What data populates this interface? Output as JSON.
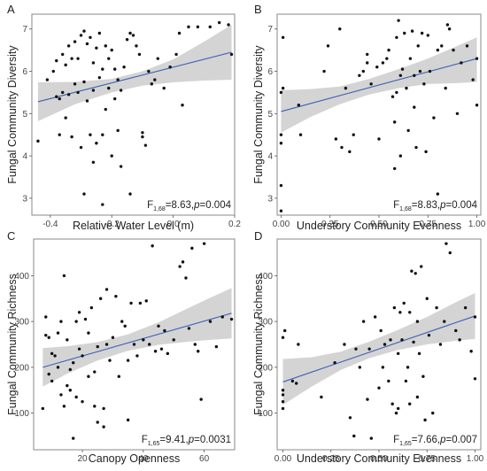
{
  "chart_data": [
    {
      "type": "scatter",
      "panel_label": "A",
      "xlabel": "Relative Water Level (m)",
      "ylabel": "Fungal Community Diversity",
      "xlim": [
        -0.46,
        0.2
      ],
      "ylim": [
        2.6,
        7.35
      ],
      "xticks": [
        -0.4,
        -0.2,
        0.0,
        0.2
      ],
      "xtick_labels": [
        "-0.4",
        "-0.2",
        "0.0",
        "0.2"
      ],
      "yticks": [
        3,
        4,
        5,
        6,
        7
      ],
      "ytick_labels": [
        "3",
        "4",
        "5",
        "6",
        "7"
      ],
      "stat": {
        "prefix": "F",
        "subscript": "1,68",
        "text": "=8.63,",
        "p_label": "p",
        "p_text": "=0.004"
      },
      "fit": {
        "x": [
          -0.44,
          0.19
        ],
        "y": [
          5.28,
          6.45
        ]
      },
      "ci": {
        "x": [
          -0.44,
          -0.32,
          -0.2,
          -0.1,
          0.0,
          0.1,
          0.19
        ],
        "lower": [
          4.82,
          5.22,
          5.5,
          5.66,
          5.74,
          5.78,
          5.8
        ],
        "upper": [
          5.74,
          5.75,
          5.82,
          6.0,
          6.28,
          6.7,
          7.1
        ]
      },
      "points": [
        [
          -0.44,
          4.35
        ],
        [
          -0.41,
          5.8
        ],
        [
          -0.39,
          6.0
        ],
        [
          -0.38,
          5.4
        ],
        [
          -0.38,
          6.25
        ],
        [
          -0.37,
          4.5
        ],
        [
          -0.37,
          5.35
        ],
        [
          -0.36,
          6.4
        ],
        [
          -0.36,
          5.5
        ],
        [
          -0.35,
          6.15
        ],
        [
          -0.35,
          4.9
        ],
        [
          -0.34,
          6.6
        ],
        [
          -0.34,
          5.45
        ],
        [
          -0.33,
          6.3
        ],
        [
          -0.33,
          4.45
        ],
        [
          -0.32,
          6.7
        ],
        [
          -0.32,
          5.7
        ],
        [
          -0.31,
          6.3
        ],
        [
          -0.31,
          5.5
        ],
        [
          -0.3,
          6.85
        ],
        [
          -0.3,
          4.2
        ],
        [
          -0.29,
          6.95
        ],
        [
          -0.29,
          5.75
        ],
        [
          -0.28,
          6.65
        ],
        [
          -0.28,
          5.3
        ],
        [
          -0.27,
          6.8
        ],
        [
          -0.27,
          4.5
        ],
        [
          -0.26,
          6.2
        ],
        [
          -0.26,
          5.55
        ],
        [
          -0.25,
          6.55
        ],
        [
          -0.25,
          4.3
        ],
        [
          -0.24,
          6.9
        ],
        [
          -0.24,
          5.85
        ],
        [
          -0.23,
          6.05
        ],
        [
          -0.23,
          4.5
        ],
        [
          -0.22,
          6.6
        ],
        [
          -0.22,
          5.1
        ],
        [
          -0.21,
          6.3
        ],
        [
          -0.21,
          5.6
        ],
        [
          -0.2,
          6.5
        ],
        [
          -0.2,
          4.0
        ],
        [
          -0.19,
          6.05
        ],
        [
          -0.19,
          5.35
        ],
        [
          -0.18,
          5.8
        ],
        [
          -0.18,
          4.6
        ],
        [
          -0.17,
          5.55
        ],
        [
          -0.16,
          6.1
        ],
        [
          -0.15,
          6.75
        ],
        [
          -0.14,
          6.9
        ],
        [
          -0.13,
          6.85
        ],
        [
          -0.12,
          6.6
        ],
        [
          -0.11,
          6.4
        ],
        [
          -0.1,
          4.55
        ],
        [
          -0.1,
          4.45
        ],
        [
          -0.09,
          4.25
        ],
        [
          -0.08,
          6.0
        ],
        [
          -0.07,
          5.7
        ],
        [
          -0.06,
          5.8
        ],
        [
          -0.05,
          6.3
        ],
        [
          -0.03,
          5.6
        ],
        [
          -0.01,
          6.1
        ],
        [
          0.01,
          6.4
        ],
        [
          0.02,
          6.9
        ],
        [
          0.03,
          5.2
        ],
        [
          0.05,
          7.05
        ],
        [
          0.08,
          7.05
        ],
        [
          0.12,
          7.05
        ],
        [
          0.15,
          7.15
        ],
        [
          0.18,
          7.1
        ],
        [
          0.19,
          6.4
        ],
        [
          -0.29,
          3.1
        ],
        [
          -0.26,
          3.85
        ],
        [
          -0.23,
          2.85
        ],
        [
          -0.17,
          3.75
        ],
        [
          -0.14,
          3.1
        ]
      ]
    },
    {
      "type": "scatter",
      "panel_label": "B",
      "xlabel": "Understory Community Evenness",
      "ylabel": "Fungal Community Diversity",
      "xlim": [
        -0.02,
        1.02
      ],
      "ylim": [
        2.6,
        7.35
      ],
      "xticks": [
        0.0,
        0.25,
        0.5,
        0.75,
        1.0
      ],
      "xtick_labels": [
        "0.00",
        "0.25",
        "0.50",
        "0.75",
        "1.00"
      ],
      "yticks": [
        3,
        4,
        5,
        6,
        7
      ],
      "ytick_labels": [
        "3",
        "4",
        "5",
        "6",
        "7"
      ],
      "stat": {
        "prefix": "F",
        "subscript": "1,68",
        "text": "=8.83,",
        "p_label": "p",
        "p_text": "=0.004"
      },
      "fit": {
        "x": [
          0.0,
          1.0
        ],
        "y": [
          5.05,
          6.3
        ]
      },
      "ci": {
        "x": [
          0.0,
          0.15,
          0.3,
          0.45,
          0.6,
          0.75,
          0.9,
          1.0
        ],
        "lower": [
          4.55,
          4.92,
          5.22,
          5.45,
          5.6,
          5.7,
          5.72,
          5.75
        ],
        "upper": [
          5.55,
          5.58,
          5.64,
          5.82,
          6.05,
          6.3,
          6.6,
          6.8
        ]
      },
      "points": [
        [
          0.0,
          3.3
        ],
        [
          0.0,
          4.3
        ],
        [
          0.0,
          4.5
        ],
        [
          0.0,
          5.5
        ],
        [
          0.01,
          6.8
        ],
        [
          0.01,
          5.6
        ],
        [
          0.0,
          2.7
        ],
        [
          0.09,
          5.2
        ],
        [
          0.1,
          4.5
        ],
        [
          0.22,
          6.0
        ],
        [
          0.24,
          6.6
        ],
        [
          0.28,
          4.4
        ],
        [
          0.3,
          7.0
        ],
        [
          0.31,
          4.2
        ],
        [
          0.33,
          5.6
        ],
        [
          0.35,
          4.1
        ],
        [
          0.37,
          4.5
        ],
        [
          0.4,
          5.9
        ],
        [
          0.42,
          6.0
        ],
        [
          0.44,
          6.4
        ],
        [
          0.46,
          5.7
        ],
        [
          0.5,
          4.4
        ],
        [
          0.52,
          6.2
        ],
        [
          0.54,
          6.3
        ],
        [
          0.55,
          6.5
        ],
        [
          0.57,
          5.4
        ],
        [
          0.58,
          4.8
        ],
        [
          0.59,
          5.5
        ],
        [
          0.59,
          6.8
        ],
        [
          0.6,
          7.2
        ],
        [
          0.61,
          5.9
        ],
        [
          0.61,
          4.0
        ],
        [
          0.62,
          6.05
        ],
        [
          0.63,
          6.9
        ],
        [
          0.64,
          5.6
        ],
        [
          0.65,
          4.6
        ],
        [
          0.66,
          6.3
        ],
        [
          0.67,
          6.95
        ],
        [
          0.68,
          5.9
        ],
        [
          0.69,
          4.2
        ],
        [
          0.7,
          6.6
        ],
        [
          0.71,
          6.0
        ],
        [
          0.72,
          6.9
        ],
        [
          0.73,
          5.7
        ],
        [
          0.74,
          4.1
        ],
        [
          0.75,
          6.85
        ],
        [
          0.76,
          6.0
        ],
        [
          0.78,
          4.9
        ],
        [
          0.8,
          6.5
        ],
        [
          0.82,
          6.6
        ],
        [
          0.84,
          5.6
        ],
        [
          0.85,
          7.1
        ],
        [
          0.86,
          7.0
        ],
        [
          0.88,
          6.5
        ],
        [
          0.9,
          5.0
        ],
        [
          0.92,
          6.2
        ],
        [
          0.95,
          6.6
        ],
        [
          0.98,
          5.8
        ],
        [
          1.0,
          6.3
        ],
        [
          1.0,
          5.2
        ],
        [
          0.58,
          3.7
        ],
        [
          0.8,
          3.1
        ],
        [
          0.68,
          5.15
        ],
        [
          0.49,
          6.1
        ],
        [
          0.44,
          6.2
        ]
      ]
    },
    {
      "type": "scatter",
      "panel_label": "C",
      "xlabel": "Canopy Openness",
      "ylabel": "Fungal Community Richness",
      "xlim": [
        4,
        70
      ],
      "ylim": [
        20,
        480
      ],
      "xticks": [
        20,
        40,
        60
      ],
      "xtick_labels": [
        "20",
        "40",
        "60"
      ],
      "yticks": [
        100,
        200,
        300,
        400
      ],
      "ytick_labels": [
        "100",
        "200",
        "300",
        "400"
      ],
      "stat": {
        "prefix": "F",
        "subscript": "1,65",
        "text": "=9.41,",
        "p_label": "p",
        "p_text": "=0.0031"
      },
      "fit": {
        "x": [
          7,
          69
        ],
        "y": [
          200,
          318
        ]
      },
      "ci": {
        "x": [
          7,
          15,
          25,
          35,
          45,
          55,
          62,
          69
        ],
        "lower": [
          158,
          186,
          215,
          236,
          249,
          256,
          260,
          263
        ],
        "upper": [
          242,
          246,
          255,
          272,
          298,
          330,
          352,
          373
        ]
      },
      "points": [
        [
          7,
          110
        ],
        [
          8,
          270
        ],
        [
          8,
          310
        ],
        [
          9,
          185
        ],
        [
          9,
          265
        ],
        [
          10,
          170
        ],
        [
          10,
          230
        ],
        [
          11,
          225
        ],
        [
          12,
          275
        ],
        [
          13,
          140
        ],
        [
          13,
          300
        ],
        [
          14,
          400
        ],
        [
          14,
          115
        ],
        [
          15,
          160
        ],
        [
          15,
          260
        ],
        [
          16,
          195
        ],
        [
          16,
          150
        ],
        [
          17,
          210
        ],
        [
          17,
          45
        ],
        [
          18,
          300
        ],
        [
          18,
          135
        ],
        [
          19,
          240
        ],
        [
          19,
          320
        ],
        [
          20,
          225
        ],
        [
          20,
          125
        ],
        [
          21,
          305
        ],
        [
          22,
          275
        ],
        [
          22,
          180
        ],
        [
          23,
          330
        ],
        [
          24,
          190
        ],
        [
          24,
          115
        ],
        [
          25,
          245
        ],
        [
          25,
          80
        ],
        [
          26,
          350
        ],
        [
          27,
          70
        ],
        [
          28,
          370
        ],
        [
          28,
          250
        ],
        [
          29,
          215
        ],
        [
          30,
          265
        ],
        [
          31,
          355
        ],
        [
          32,
          180
        ],
        [
          33,
          300
        ],
        [
          34,
          290
        ],
        [
          35,
          215
        ],
        [
          36,
          340
        ],
        [
          37,
          250
        ],
        [
          38,
          225
        ],
        [
          39,
          340
        ],
        [
          40,
          260
        ],
        [
          41,
          345
        ],
        [
          42,
          250
        ],
        [
          43,
          465
        ],
        [
          44,
          235
        ],
        [
          45,
          290
        ],
        [
          46,
          240
        ],
        [
          47,
          280
        ],
        [
          48,
          230
        ],
        [
          50,
          260
        ],
        [
          52,
          420
        ],
        [
          53,
          430
        ],
        [
          54,
          395
        ],
        [
          55,
          285
        ],
        [
          56,
          460
        ],
        [
          57,
          250
        ],
        [
          58,
          235
        ],
        [
          59,
          130
        ],
        [
          60,
          470
        ],
        [
          62,
          300
        ],
        [
          64,
          245
        ],
        [
          66,
          310
        ],
        [
          69,
          305
        ],
        [
          35,
          85
        ],
        [
          27,
          110
        ],
        [
          12,
          200
        ]
      ]
    },
    {
      "type": "scatter",
      "panel_label": "D",
      "xlabel": "Understory Community Evenness",
      "ylabel": "Fungal Community Richness",
      "xlim": [
        -0.03,
        1.03
      ],
      "ylim": [
        20,
        480
      ],
      "xticks": [
        0.0,
        0.25,
        0.5,
        0.75,
        1.0
      ],
      "xtick_labels": [
        "0.00",
        "0.25",
        "0.50",
        "0.75",
        "1.00"
      ],
      "yticks": [
        100,
        200,
        300,
        400
      ],
      "ytick_labels": [
        "100",
        "200",
        "300",
        "400"
      ],
      "stat": {
        "prefix": "F",
        "subscript": "1,65",
        "text": "=7.66,",
        "p_label": "p",
        "p_text": "=0.007"
      },
      "fit": {
        "x": [
          0.0,
          1.0
        ],
        "y": [
          168,
          312
        ]
      },
      "ci": {
        "x": [
          0.0,
          0.15,
          0.3,
          0.45,
          0.6,
          0.75,
          0.9,
          1.0
        ],
        "lower": [
          118,
          158,
          194,
          220,
          238,
          250,
          258,
          262
        ],
        "upper": [
          218,
          222,
          234,
          256,
          282,
          310,
          342,
          362
        ]
      },
      "points": [
        [
          0.0,
          110
        ],
        [
          0.0,
          125
        ],
        [
          0.0,
          140
        ],
        [
          0.0,
          150
        ],
        [
          0.0,
          265
        ],
        [
          0.01,
          280
        ],
        [
          0.05,
          170
        ],
        [
          0.07,
          165
        ],
        [
          0.08,
          250
        ],
        [
          0.2,
          135
        ],
        [
          0.27,
          210
        ],
        [
          0.32,
          250
        ],
        [
          0.35,
          90
        ],
        [
          0.37,
          50
        ],
        [
          0.38,
          240
        ],
        [
          0.4,
          200
        ],
        [
          0.42,
          300
        ],
        [
          0.44,
          130
        ],
        [
          0.45,
          240
        ],
        [
          0.46,
          45
        ],
        [
          0.48,
          310
        ],
        [
          0.5,
          155
        ],
        [
          0.51,
          280
        ],
        [
          0.52,
          200
        ],
        [
          0.53,
          250
        ],
        [
          0.55,
          170
        ],
        [
          0.56,
          260
        ],
        [
          0.57,
          120
        ],
        [
          0.58,
          330
        ],
        [
          0.59,
          100
        ],
        [
          0.6,
          230
        ],
        [
          0.61,
          320
        ],
        [
          0.62,
          260
        ],
        [
          0.63,
          340
        ],
        [
          0.64,
          170
        ],
        [
          0.65,
          200
        ],
        [
          0.66,
          120
        ],
        [
          0.67,
          410
        ],
        [
          0.68,
          255
        ],
        [
          0.69,
          405
        ],
        [
          0.7,
          300
        ],
        [
          0.71,
          230
        ],
        [
          0.72,
          420
        ],
        [
          0.73,
          180
        ],
        [
          0.74,
          85
        ],
        [
          0.75,
          350
        ],
        [
          0.76,
          270
        ],
        [
          0.78,
          100
        ],
        [
          0.8,
          330
        ],
        [
          0.82,
          250
        ],
        [
          0.84,
          300
        ],
        [
          0.85,
          470
        ],
        [
          0.87,
          450
        ],
        [
          0.9,
          280
        ],
        [
          0.92,
          260
        ],
        [
          0.95,
          330
        ],
        [
          0.98,
          235
        ],
        [
          1.0,
          310
        ],
        [
          1.0,
          175
        ],
        [
          0.6,
          110
        ],
        [
          0.66,
          320
        ],
        [
          0.7,
          135
        ]
      ]
    }
  ]
}
